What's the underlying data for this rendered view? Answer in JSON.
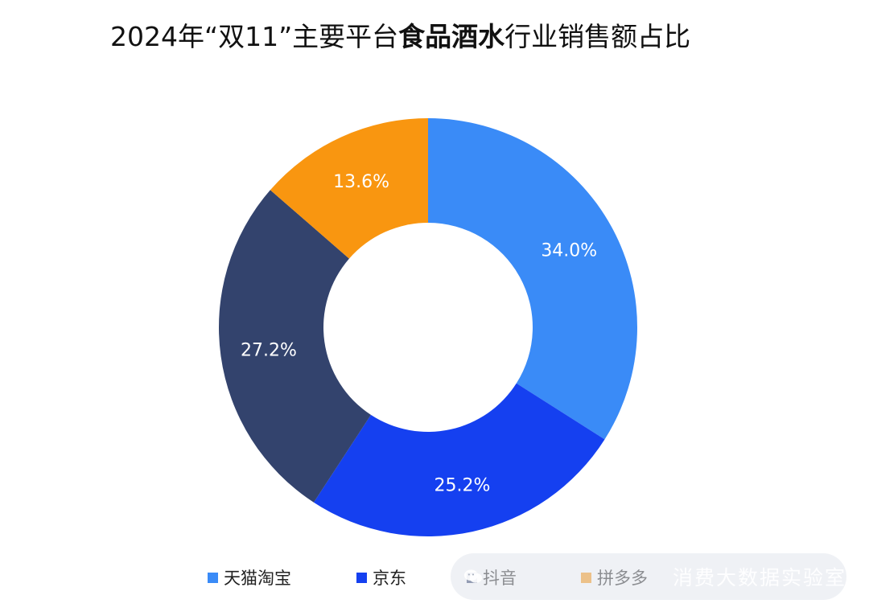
{
  "title": {
    "prefix": "2024年“双11”主要平台",
    "bold": "食品酒水",
    "suffix": "行业销售额占比"
  },
  "chart_data": {
    "type": "pie",
    "variant": "donut",
    "title": "2024年“双11”主要平台食品酒水行业销售额占比",
    "legend_position": "bottom",
    "categories": [
      "天猫淘宝",
      "京东",
      "抖音",
      "拼多多"
    ],
    "values": [
      34.0,
      25.2,
      27.2,
      13.6
    ],
    "labels": [
      "34.0%",
      "25.2%",
      "27.2%",
      "13.6%"
    ],
    "colors": [
      "#3A8BF7",
      "#1540F0",
      "#33436D",
      "#F99610"
    ]
  },
  "watermark": {
    "text": "消费大数据实验室",
    "icon": "wechat-icon"
  }
}
